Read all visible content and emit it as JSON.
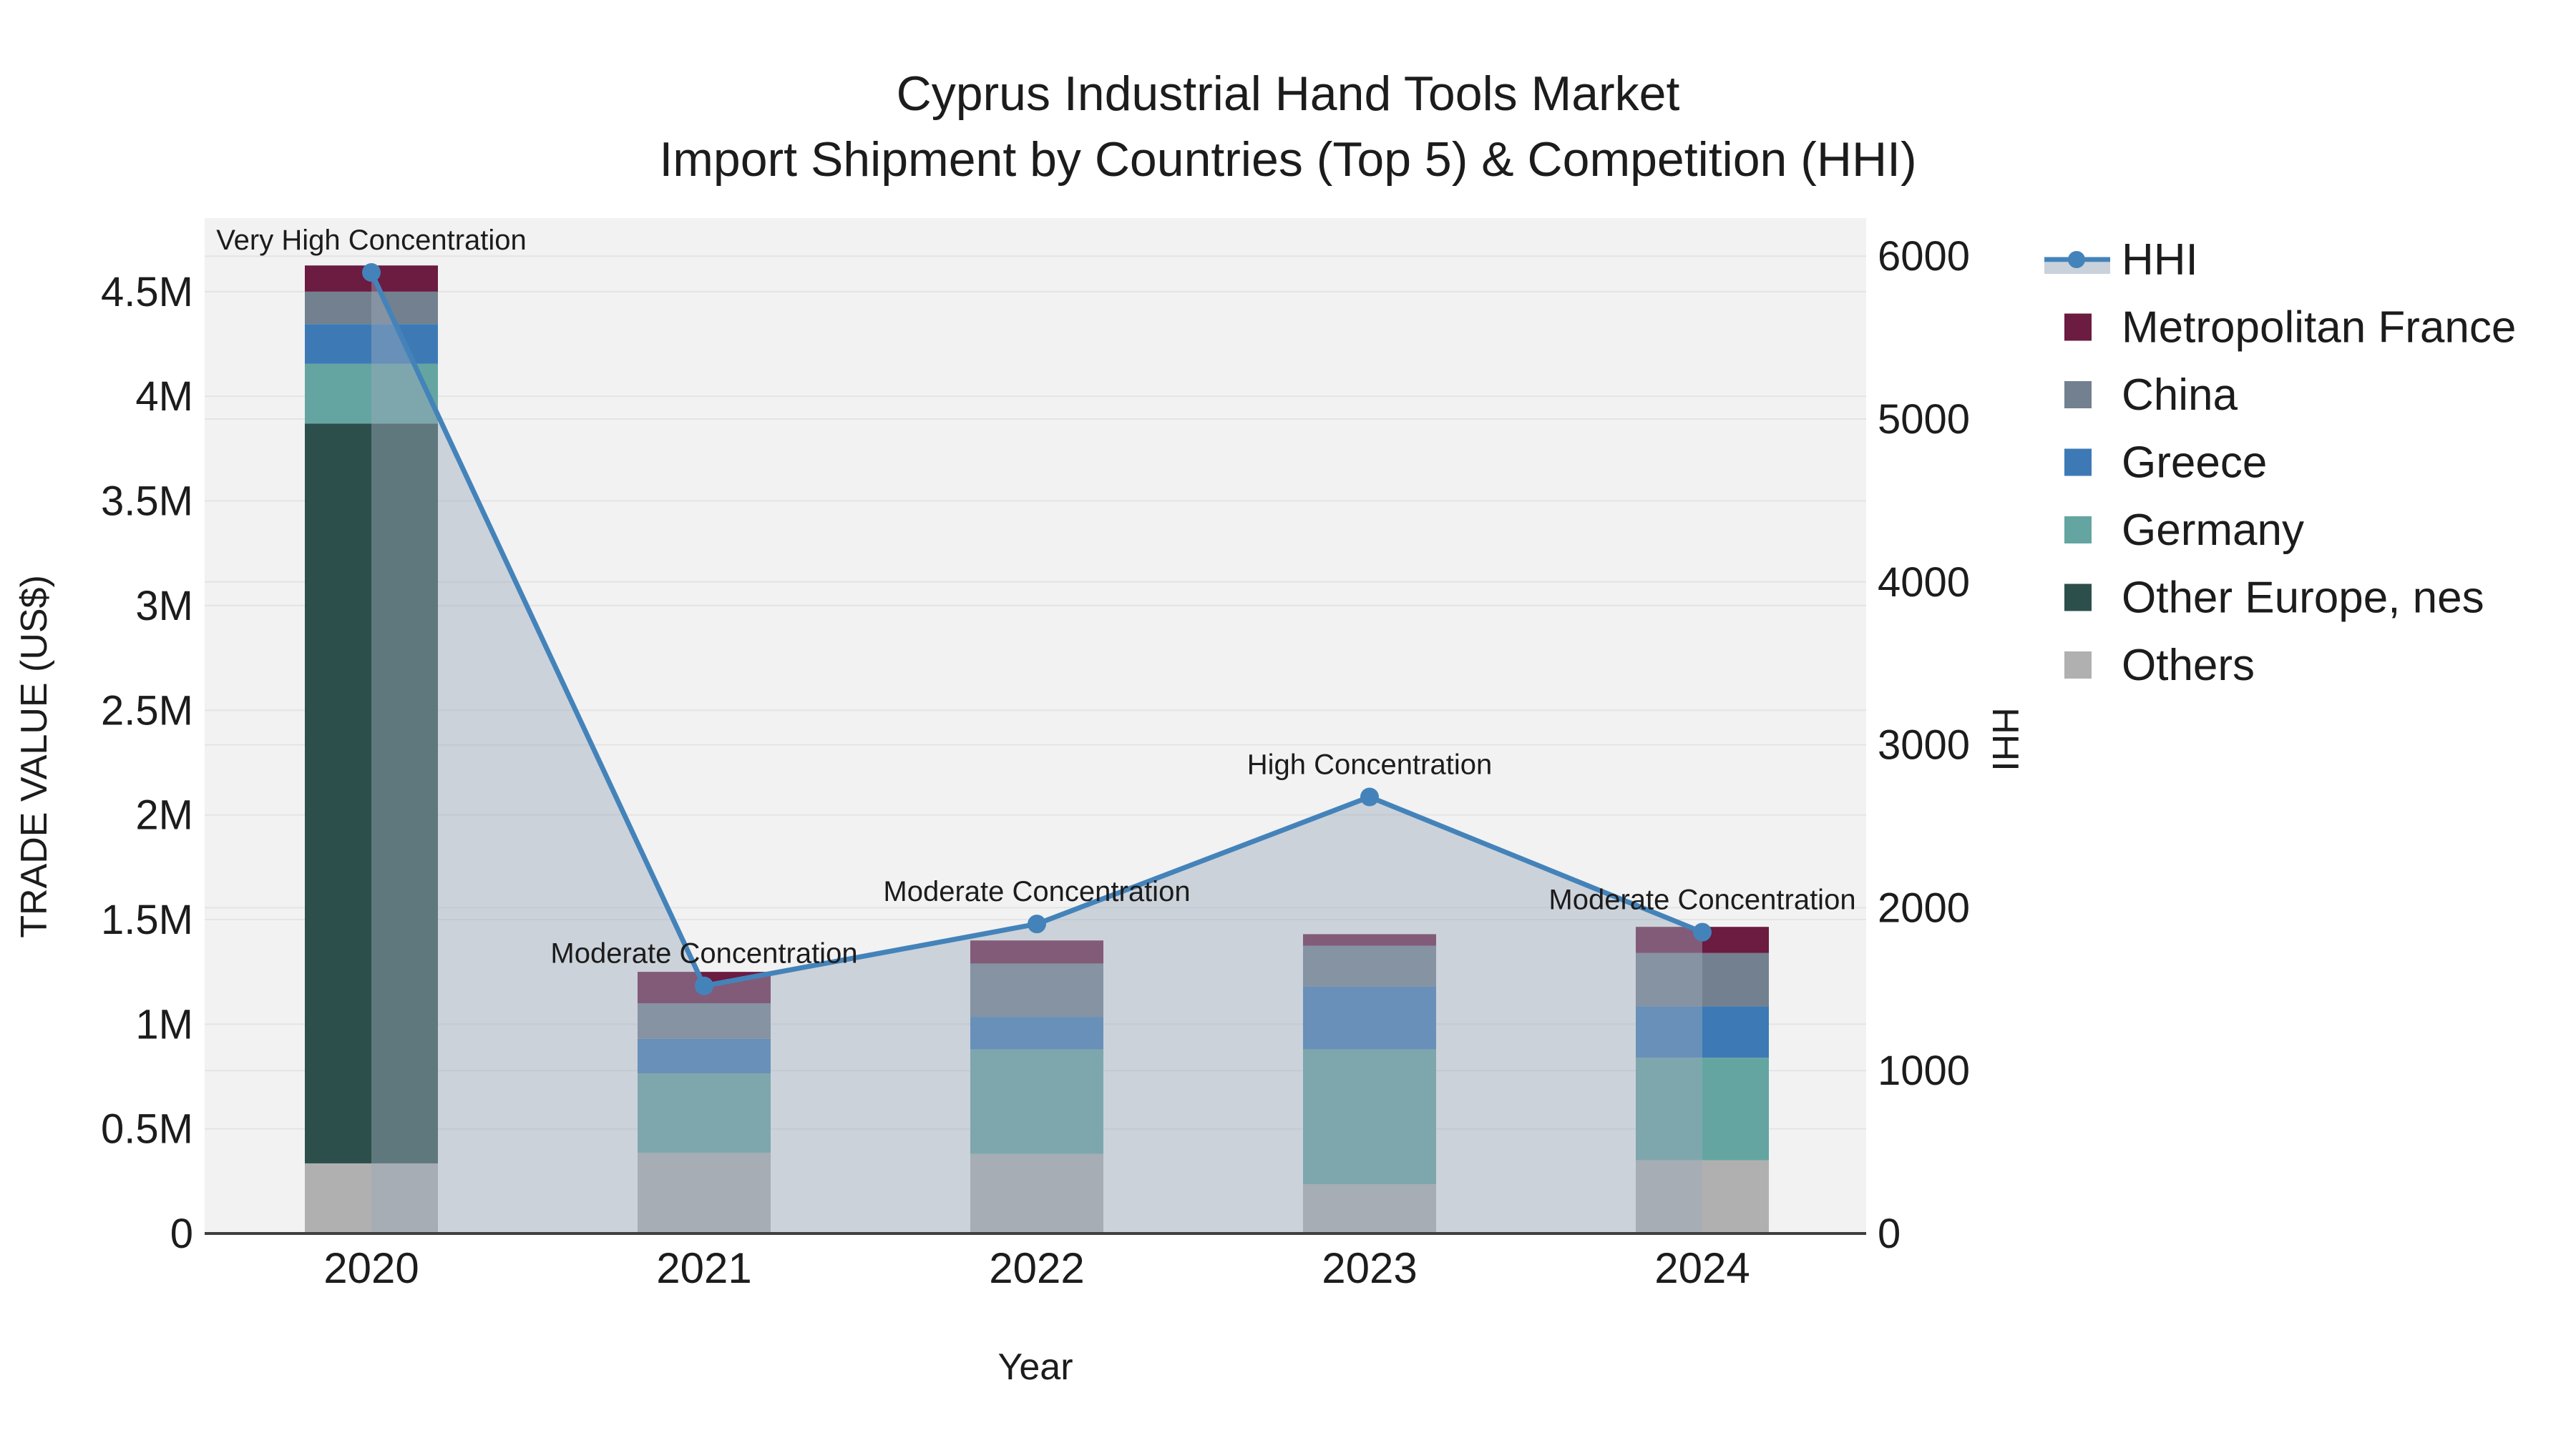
{
  "title": {
    "line1": "Cyprus Industrial Hand Tools Market",
    "line2": "Import Shipment by Countries (Top 5) & Competition (HHI)"
  },
  "chart_data": {
    "type": "bar+line",
    "categories": [
      "2020",
      "2021",
      "2022",
      "2023",
      "2024"
    ],
    "bar_unit": "M",
    "bar_series": [
      {
        "name": "Others",
        "color": "#b0b0b0",
        "values": [
          0.335,
          0.385,
          0.38,
          0.235,
          0.35
        ]
      },
      {
        "name": "Other Europe, nes",
        "color": "#2d4f4c",
        "values": [
          3.535,
          0,
          0,
          0,
          0
        ]
      },
      {
        "name": "Germany",
        "color": "#64a5a1",
        "values": [
          0.285,
          0.38,
          0.5,
          0.645,
          0.49
        ]
      },
      {
        "name": "Greece",
        "color": "#3d7ab5",
        "values": [
          0.19,
          0.165,
          0.155,
          0.3,
          0.245
        ]
      },
      {
        "name": "China",
        "color": "#72808f",
        "values": [
          0.155,
          0.17,
          0.255,
          0.195,
          0.255
        ]
      },
      {
        "name": "Metropolitan France",
        "color": "#6c1b41",
        "values": [
          0.125,
          0.15,
          0.11,
          0.055,
          0.125
        ]
      }
    ],
    "line_series": {
      "name": "HHI",
      "color": "#4483ba",
      "area_color": "rgba(158,171,189,0.45)",
      "values": [
        5900,
        1520,
        1900,
        2680,
        1850
      ]
    },
    "annotations": [
      "Very High Concentration",
      "Moderate Concentration",
      "Moderate Concentration",
      "High Concentration",
      "Moderate Concentration"
    ],
    "y_left": {
      "label": "TRADE VALUE (US$)",
      "tick_values": [
        0,
        0.5,
        1,
        1.5,
        2,
        2.5,
        3,
        3.5,
        4,
        4.5
      ],
      "tick_labels": [
        "0",
        "0.5M",
        "1M",
        "1.5M",
        "2M",
        "2.5M",
        "3M",
        "3.5M",
        "4M",
        "4.5M"
      ],
      "ylim": [
        0,
        4.85
      ]
    },
    "y_right": {
      "label": "HHI",
      "tick_values": [
        0,
        1000,
        2000,
        3000,
        4000,
        5000,
        6000
      ],
      "tick_labels": [
        "0",
        "1000",
        "2000",
        "3000",
        "4000",
        "5000",
        "6000"
      ],
      "ylim": [
        0,
        6230
      ]
    },
    "x_axis": {
      "label": "Year"
    },
    "grid": true,
    "legend_position": "right"
  },
  "legend": {
    "items": [
      {
        "label": "HHI",
        "type": "line",
        "color": "#4483ba",
        "band": "#c9d1db"
      },
      {
        "label": "Metropolitan France",
        "type": "box",
        "color": "#6c1b41"
      },
      {
        "label": "China",
        "type": "box",
        "color": "#72808f"
      },
      {
        "label": "Greece",
        "type": "box",
        "color": "#3d7ab5"
      },
      {
        "label": "Germany",
        "type": "box",
        "color": "#64a5a1"
      },
      {
        "label": "Other Europe, nes",
        "type": "box",
        "color": "#2d4f4c"
      },
      {
        "label": "Others",
        "type": "box",
        "color": "#b0b0b0"
      }
    ]
  },
  "style_colors": {
    "plot_bg": "#f2f2f2",
    "grid": "#e4e4e4",
    "axis_line": "#3f3f3f",
    "text": "#1c1c1c"
  }
}
